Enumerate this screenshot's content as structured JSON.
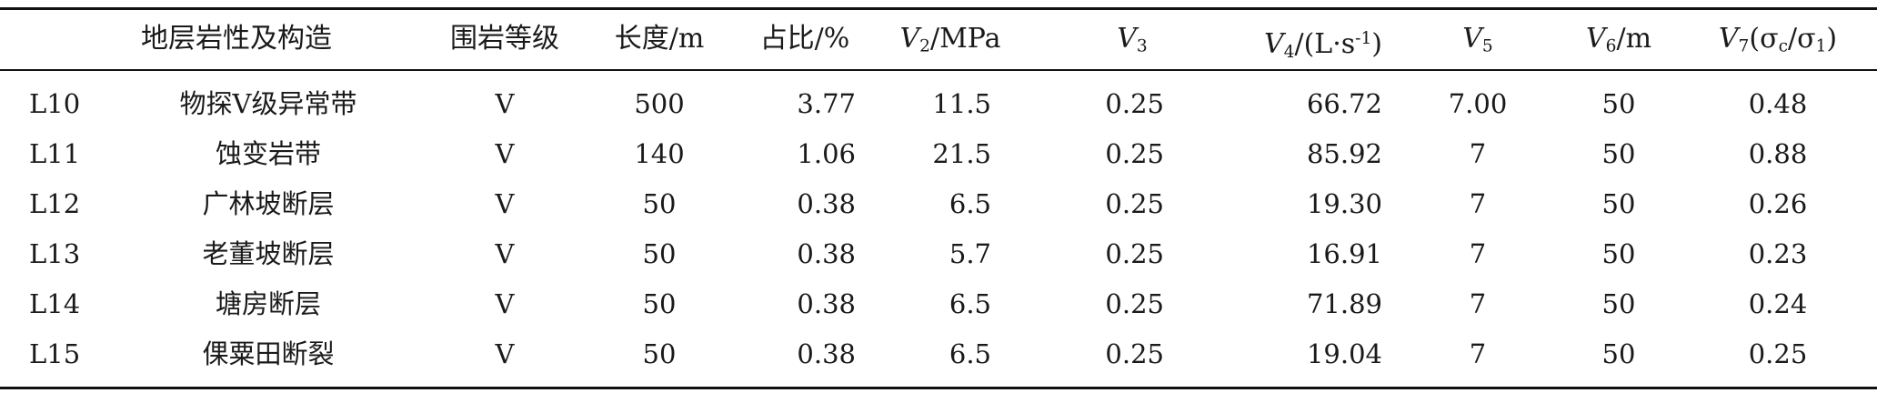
{
  "table": {
    "headers": {
      "col_layer": "地层岩性及构造",
      "col_grade": "围岩等级",
      "col_length": "长度/m",
      "col_ratio": "占比/%",
      "col_v2_prefix": "V",
      "col_v2_sub": "2",
      "col_v2_suffix": "/MPa",
      "col_v3_prefix": "V",
      "col_v3_sub": "3",
      "col_v4_prefix": "V",
      "col_v4_sub": "4",
      "col_v4_suffix": "/(L·s",
      "col_v4_sup": "-1",
      "col_v4_close": ")",
      "col_v5_prefix": "V",
      "col_v5_sub": "5",
      "col_v6_prefix": "V",
      "col_v6_sub": "6",
      "col_v6_suffix": "/m",
      "col_v7_prefix": "V",
      "col_v7_sub": "7",
      "col_v7_suffix": "(σ",
      "col_v7_sub_c": "c",
      "col_v7_mid": "/σ",
      "col_v7_sub_1": "1",
      "col_v7_close": ")"
    },
    "rows": [
      {
        "id": "L10",
        "name": "物探V级异常带",
        "grade": "V",
        "length": "500",
        "ratio": "3.77",
        "v2": "11.5",
        "v3": "0.25",
        "v4": "66.72",
        "v5": "7.00",
        "v6": "50",
        "v7": "0.48"
      },
      {
        "id": "L11",
        "name": "蚀变岩带",
        "grade": "V",
        "length": "140",
        "ratio": "1.06",
        "v2": "21.5",
        "v3": "0.25",
        "v4": "85.92",
        "v5": "7",
        "v6": "50",
        "v7": "0.88"
      },
      {
        "id": "L12",
        "name": "广林坡断层",
        "grade": "V",
        "length": "50",
        "ratio": "0.38",
        "v2": "6.5",
        "v3": "0.25",
        "v4": "19.30",
        "v5": "7",
        "v6": "50",
        "v7": "0.26"
      },
      {
        "id": "L13",
        "name": "老董坡断层",
        "grade": "V",
        "length": "50",
        "ratio": "0.38",
        "v2": "5.7",
        "v3": "0.25",
        "v4": "16.91",
        "v5": "7",
        "v6": "50",
        "v7": "0.23"
      },
      {
        "id": "L14",
        "name": "塘房断层",
        "grade": "V",
        "length": "50",
        "ratio": "0.38",
        "v2": "6.5",
        "v3": "0.25",
        "v4": "71.89",
        "v5": "7",
        "v6": "50",
        "v7": "0.24"
      },
      {
        "id": "L15",
        "name": "倮粟田断裂",
        "grade": "V",
        "length": "50",
        "ratio": "0.38",
        "v2": "6.5",
        "v3": "0.25",
        "v4": "19.04",
        "v5": "7",
        "v6": "50",
        "v7": "0.25"
      }
    ]
  }
}
